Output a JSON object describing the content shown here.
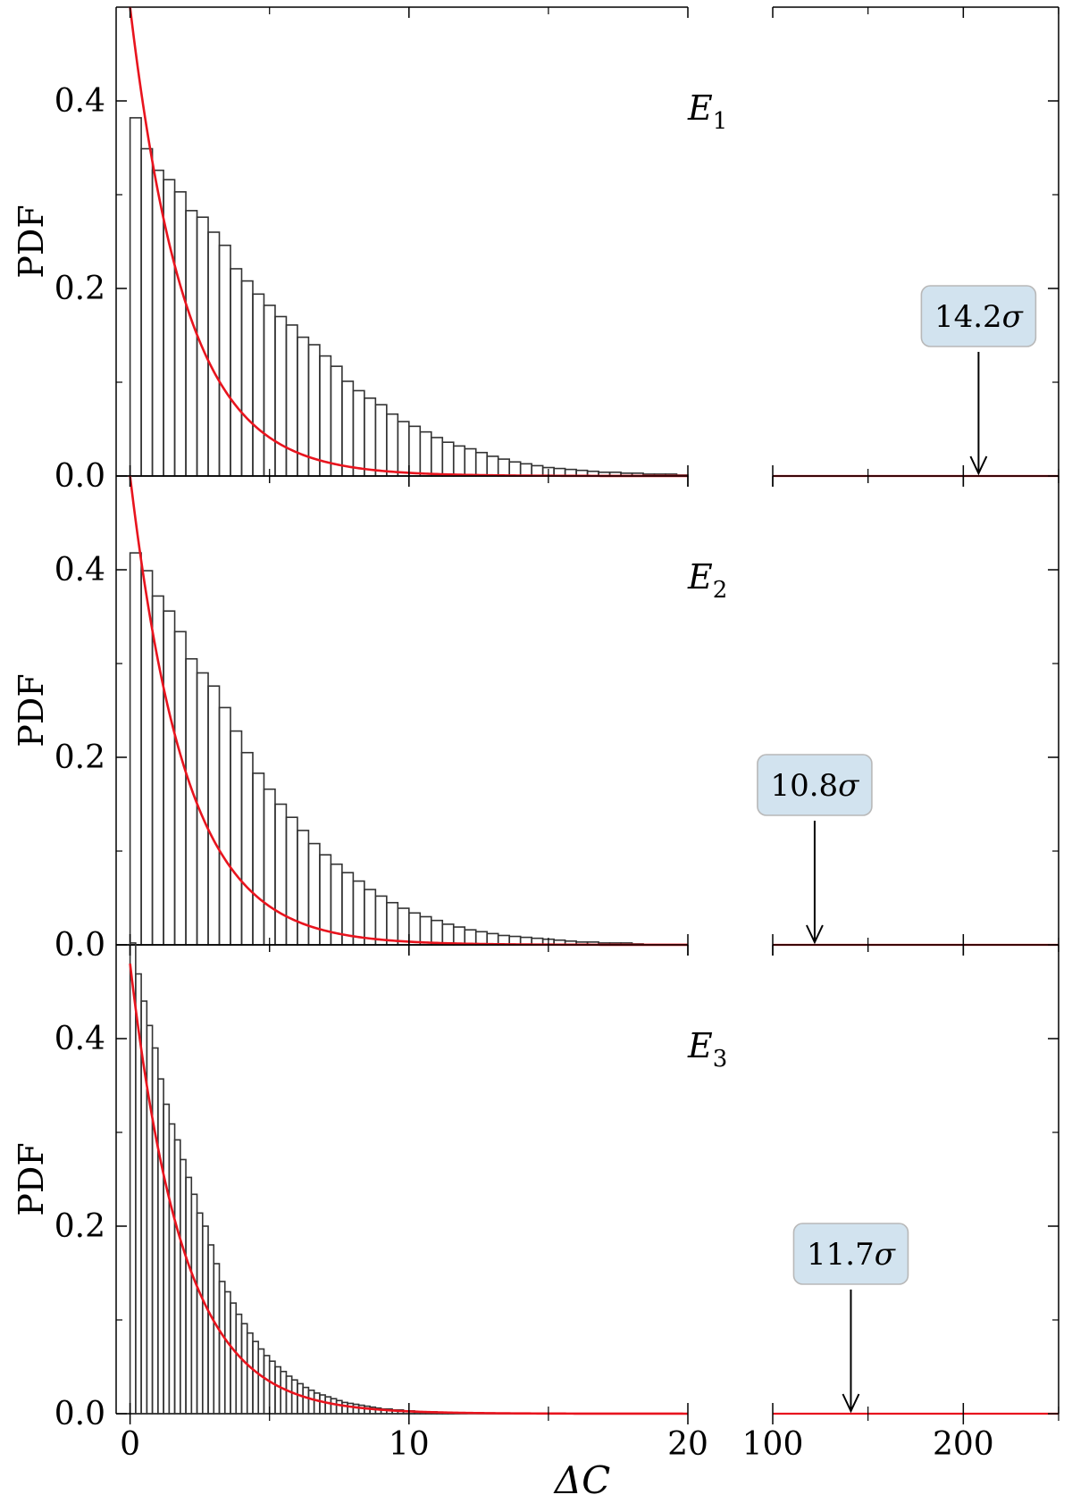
{
  "figure": {
    "xlabel": "ΔC",
    "ylabel": "PDF",
    "left_x_ticks": [
      "0",
      "10",
      "20"
    ],
    "right_x_ticks": [
      "100",
      "200"
    ],
    "y_ticks": [
      "0.0",
      "0.2",
      "0.4"
    ]
  },
  "chart_data": [
    {
      "type": "bar",
      "panel_label_base": "E",
      "panel_label_sub": "1",
      "left_xlim": [
        -0.5,
        20
      ],
      "right_xlim": [
        100,
        250
      ],
      "ylim": [
        0,
        0.5
      ],
      "bin_width": 0.4,
      "bins_start": 0,
      "histogram": [
        0.382,
        0.349,
        0.326,
        0.316,
        0.303,
        0.283,
        0.276,
        0.26,
        0.246,
        0.221,
        0.208,
        0.194,
        0.182,
        0.17,
        0.161,
        0.148,
        0.14,
        0.128,
        0.117,
        0.101,
        0.091,
        0.083,
        0.076,
        0.066,
        0.058,
        0.053,
        0.047,
        0.041,
        0.036,
        0.032,
        0.029,
        0.025,
        0.021,
        0.018,
        0.015,
        0.013,
        0.011,
        0.009,
        0.008,
        0.007,
        0.006,
        0.005,
        0.004,
        0.004,
        0.003,
        0.003,
        0.002,
        0.002,
        0.002,
        0.001
      ],
      "curve": {
        "type": "exponential",
        "amplitude": 0.5,
        "scale": 2.0
      },
      "grid": false,
      "annotation": {
        "text_value": "14.2",
        "text_symbol": "σ",
        "x": 208
      }
    },
    {
      "type": "bar",
      "panel_label_base": "E",
      "panel_label_sub": "2",
      "left_xlim": [
        -0.5,
        20
      ],
      "right_xlim": [
        100,
        250
      ],
      "ylim": [
        0,
        0.5
      ],
      "bin_width": 0.4,
      "bins_start": 0,
      "histogram": [
        0.418,
        0.399,
        0.372,
        0.356,
        0.334,
        0.305,
        0.29,
        0.276,
        0.253,
        0.228,
        0.205,
        0.183,
        0.166,
        0.15,
        0.136,
        0.122,
        0.108,
        0.096,
        0.086,
        0.077,
        0.068,
        0.059,
        0.052,
        0.045,
        0.039,
        0.034,
        0.03,
        0.026,
        0.022,
        0.019,
        0.016,
        0.014,
        0.012,
        0.01,
        0.009,
        0.008,
        0.007,
        0.006,
        0.005,
        0.004,
        0.003,
        0.003,
        0.002,
        0.002,
        0.002,
        0.001
      ],
      "curve": {
        "type": "exponential",
        "amplitude": 0.5,
        "scale": 2.0
      },
      "grid": false,
      "annotation": {
        "text_value": "10.8",
        "text_symbol": "σ",
        "x": 122
      }
    },
    {
      "type": "bar",
      "panel_label_base": "E",
      "panel_label_sub": "3",
      "left_xlim": [
        -0.5,
        20
      ],
      "right_xlim": [
        100,
        250
      ],
      "ylim": [
        0,
        0.5
      ],
      "bin_width": 0.2,
      "bins_start": 0,
      "histogram": [
        0.502,
        0.469,
        0.44,
        0.414,
        0.39,
        0.357,
        0.33,
        0.309,
        0.292,
        0.271,
        0.252,
        0.234,
        0.214,
        0.2,
        0.18,
        0.16,
        0.141,
        0.13,
        0.118,
        0.106,
        0.096,
        0.086,
        0.077,
        0.069,
        0.062,
        0.056,
        0.05,
        0.045,
        0.04,
        0.036,
        0.032,
        0.028,
        0.025,
        0.022,
        0.02,
        0.018,
        0.016,
        0.014,
        0.012,
        0.011,
        0.01,
        0.009,
        0.008,
        0.007,
        0.006,
        0.005,
        0.005,
        0.004,
        0.004,
        0.003,
        0.003,
        0.002,
        0.002,
        0.002,
        0.002,
        0.001,
        0.001,
        0.001
      ],
      "curve": {
        "type": "exponential",
        "amplitude": 0.48,
        "scale": 1.9
      },
      "grid": false,
      "annotation": {
        "text_value": "11.7",
        "text_symbol": "σ",
        "x": 141
      }
    }
  ]
}
